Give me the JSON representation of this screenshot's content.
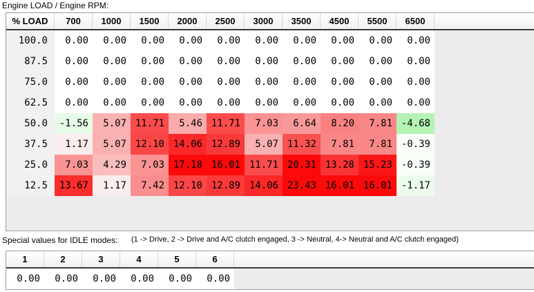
{
  "title": "Engine LOAD / Engine RPM:",
  "main_table": {
    "corner_label": "% LOAD",
    "rpm_columns": [
      "700",
      "1000",
      "1500",
      "2000",
      "2500",
      "3000",
      "3500",
      "4500",
      "5500",
      "6500"
    ],
    "load_rows": [
      "100.0",
      "87.5",
      "75.0",
      "62.5",
      "50.0",
      "37.5",
      "25.0",
      "12.5"
    ],
    "values": [
      [
        0.0,
        0.0,
        0.0,
        0.0,
        0.0,
        0.0,
        0.0,
        0.0,
        0.0,
        0.0
      ],
      [
        0.0,
        0.0,
        0.0,
        0.0,
        0.0,
        0.0,
        0.0,
        0.0,
        0.0,
        0.0
      ],
      [
        0.0,
        0.0,
        0.0,
        0.0,
        0.0,
        0.0,
        0.0,
        0.0,
        0.0,
        0.0
      ],
      [
        0.0,
        0.0,
        0.0,
        0.0,
        0.0,
        0.0,
        0.0,
        0.0,
        0.0,
        0.0
      ],
      [
        -1.56,
        5.07,
        11.71,
        5.46,
        11.71,
        7.03,
        6.64,
        8.2,
        7.81,
        -4.68
      ],
      [
        1.17,
        5.07,
        12.1,
        14.06,
        12.89,
        5.07,
        11.32,
        7.81,
        7.81,
        -0.39
      ],
      [
        7.03,
        4.29,
        7.03,
        17.18,
        16.01,
        11.71,
        20.31,
        13.28,
        15.23,
        -0.39
      ],
      [
        13.67,
        1.17,
        7.42,
        12.1,
        12.89,
        14.06,
        23.43,
        16.01,
        16.01,
        -1.17
      ]
    ]
  },
  "idle_section": {
    "label": "Special values for IDLE modes:",
    "caption": "(1 -> Drive, 2 -> Drive and A/C clutch engaged, 3 -> Neutral, 4-> Neutral and A/C clutch engaged)",
    "columns": [
      "1",
      "2",
      "3",
      "4",
      "5",
      "6"
    ],
    "values": [
      0.0,
      0.0,
      0.0,
      0.0,
      0.0,
      0.0
    ]
  },
  "colors": {
    "heat_max": 16,
    "positive_max": "#fa0a0a",
    "negative_max": "#b4f0b4",
    "zero_cell": "#ffffff",
    "row_label_bg": "#f1f1f1",
    "panel_filler": "#ececec"
  }
}
